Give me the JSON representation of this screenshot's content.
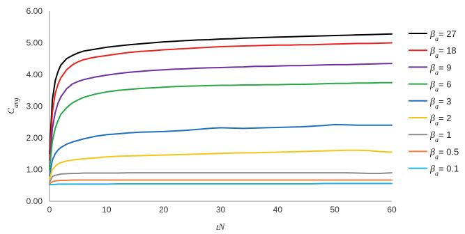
{
  "chart_data": {
    "type": "line",
    "title": "",
    "xlabel": "tN",
    "ylabel_main": "C",
    "ylabel_sub": "avg",
    "xlim": [
      0,
      60
    ],
    "ylim": [
      0,
      6
    ],
    "x_ticks": [
      0,
      10,
      20,
      30,
      40,
      50,
      60
    ],
    "y_ticks": [
      "0.00",
      "1.00",
      "2.00",
      "3.00",
      "4.00",
      "5.00",
      "6.00"
    ],
    "grid": false,
    "legend_position": "right",
    "legend_symbol": "β",
    "legend_subscript": "a",
    "x": [
      0,
      0.5,
      1,
      1.5,
      2,
      3,
      4,
      5,
      6,
      8,
      10,
      12,
      14,
      16,
      18,
      20,
      22,
      24,
      26,
      28,
      30,
      32,
      34,
      36,
      38,
      40,
      42,
      44,
      46,
      48,
      50,
      52,
      54,
      56,
      58,
      60
    ],
    "series": [
      {
        "name": "= 27",
        "color": "#000000",
        "values": [
          1.5,
          3.2,
          3.8,
          4.1,
          4.3,
          4.5,
          4.6,
          4.68,
          4.74,
          4.8,
          4.86,
          4.9,
          4.94,
          4.97,
          5.0,
          5.03,
          5.05,
          5.07,
          5.09,
          5.1,
          5.12,
          5.13,
          5.15,
          5.16,
          5.17,
          5.18,
          5.19,
          5.2,
          5.21,
          5.22,
          5.23,
          5.24,
          5.25,
          5.26,
          5.27,
          5.28
        ]
      },
      {
        "name": "= 18",
        "color": "#e8231f",
        "values": [
          1.3,
          2.8,
          3.4,
          3.7,
          3.9,
          4.15,
          4.3,
          4.4,
          4.47,
          4.55,
          4.6,
          4.65,
          4.7,
          4.73,
          4.75,
          4.78,
          4.8,
          4.82,
          4.84,
          4.86,
          4.88,
          4.89,
          4.9,
          4.91,
          4.92,
          4.93,
          4.93,
          4.94,
          4.94,
          4.95,
          4.96,
          4.97,
          4.98,
          4.98,
          4.99,
          5.0
        ]
      },
      {
        "name": "= 9",
        "color": "#7030a0",
        "values": [
          1.1,
          2.3,
          2.8,
          3.1,
          3.3,
          3.55,
          3.7,
          3.78,
          3.84,
          3.92,
          3.98,
          4.03,
          4.07,
          4.1,
          4.13,
          4.15,
          4.17,
          4.18,
          4.2,
          4.21,
          4.22,
          4.23,
          4.24,
          4.26,
          4.26,
          4.27,
          4.28,
          4.28,
          4.29,
          4.3,
          4.31,
          4.31,
          4.32,
          4.33,
          4.34,
          4.35
        ]
      },
      {
        "name": "= 6",
        "color": "#28a745",
        "values": [
          1.0,
          1.9,
          2.3,
          2.55,
          2.75,
          2.95,
          3.1,
          3.2,
          3.28,
          3.38,
          3.45,
          3.5,
          3.53,
          3.56,
          3.58,
          3.6,
          3.62,
          3.63,
          3.64,
          3.65,
          3.66,
          3.66,
          3.67,
          3.67,
          3.68,
          3.68,
          3.69,
          3.69,
          3.7,
          3.71,
          3.72,
          3.72,
          3.73,
          3.73,
          3.74,
          3.74
        ]
      },
      {
        "name": "= 3",
        "color": "#2070c0",
        "values": [
          0.8,
          1.3,
          1.5,
          1.62,
          1.7,
          1.8,
          1.87,
          1.92,
          1.97,
          2.05,
          2.1,
          2.13,
          2.16,
          2.18,
          2.19,
          2.2,
          2.22,
          2.24,
          2.27,
          2.3,
          2.32,
          2.31,
          2.3,
          2.31,
          2.32,
          2.33,
          2.34,
          2.35,
          2.37,
          2.39,
          2.42,
          2.41,
          2.4,
          2.4,
          2.4,
          2.4
        ]
      },
      {
        "name": "= 2",
        "color": "#f5c518",
        "values": [
          0.7,
          1.0,
          1.1,
          1.18,
          1.22,
          1.27,
          1.3,
          1.32,
          1.34,
          1.37,
          1.4,
          1.42,
          1.43,
          1.44,
          1.45,
          1.46,
          1.47,
          1.48,
          1.49,
          1.5,
          1.51,
          1.52,
          1.53,
          1.53,
          1.54,
          1.55,
          1.56,
          1.57,
          1.58,
          1.59,
          1.6,
          1.61,
          1.61,
          1.6,
          1.57,
          1.55
        ]
      },
      {
        "name": "= 1",
        "color": "#8c8c8c",
        "values": [
          0.6,
          0.78,
          0.82,
          0.84,
          0.86,
          0.87,
          0.88,
          0.88,
          0.89,
          0.89,
          0.89,
          0.89,
          0.9,
          0.9,
          0.9,
          0.9,
          0.9,
          0.9,
          0.9,
          0.9,
          0.9,
          0.9,
          0.9,
          0.9,
          0.9,
          0.9,
          0.9,
          0.9,
          0.9,
          0.9,
          0.9,
          0.9,
          0.89,
          0.88,
          0.88,
          0.9
        ]
      },
      {
        "name": "= 0.5",
        "color": "#f08040",
        "values": [
          0.55,
          0.62,
          0.64,
          0.65,
          0.66,
          0.66,
          0.67,
          0.67,
          0.67,
          0.67,
          0.67,
          0.67,
          0.67,
          0.67,
          0.67,
          0.67,
          0.67,
          0.67,
          0.67,
          0.67,
          0.67,
          0.67,
          0.67,
          0.67,
          0.67,
          0.67,
          0.67,
          0.67,
          0.67,
          0.67,
          0.67,
          0.67,
          0.67,
          0.67,
          0.67,
          0.67
        ]
      },
      {
        "name": "= 0.1",
        "color": "#1fb3e0",
        "values": [
          0.52,
          0.53,
          0.53,
          0.54,
          0.54,
          0.54,
          0.54,
          0.54,
          0.54,
          0.54,
          0.54,
          0.55,
          0.55,
          0.55,
          0.55,
          0.55,
          0.55,
          0.55,
          0.55,
          0.55,
          0.55,
          0.55,
          0.55,
          0.55,
          0.55,
          0.55,
          0.55,
          0.55,
          0.55,
          0.56,
          0.56,
          0.56,
          0.56,
          0.56,
          0.56,
          0.56
        ]
      }
    ]
  }
}
